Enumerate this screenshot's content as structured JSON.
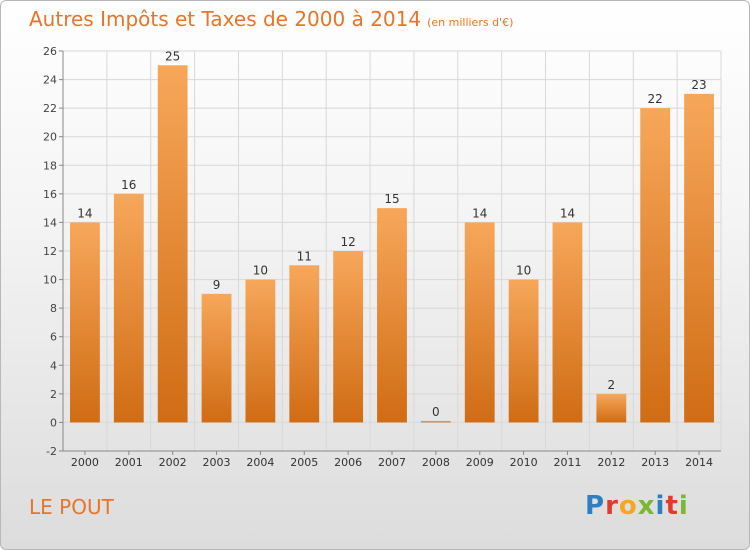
{
  "header": {
    "title": "Autres Impôts et Taxes de 2000 à 2014",
    "unit": "(en milliers d'€)"
  },
  "footer": {
    "commune": "LE POUT",
    "logo_letters": [
      {
        "ch": "P",
        "color": "#2e7fc2"
      },
      {
        "ch": "r",
        "color": "#e5392b"
      },
      {
        "ch": "o",
        "color": "#f5a623"
      },
      {
        "ch": "x",
        "color": "#7cb82f"
      },
      {
        "ch": "i",
        "color": "#2e7fc2"
      },
      {
        "ch": "t",
        "color": "#e5392b"
      },
      {
        "ch": "i",
        "color": "#7cb82f"
      }
    ]
  },
  "chart_data": {
    "type": "bar",
    "categories": [
      "2000",
      "2001",
      "2002",
      "2003",
      "2004",
      "2005",
      "2006",
      "2007",
      "2008",
      "2009",
      "2010",
      "2011",
      "2012",
      "2013",
      "2014"
    ],
    "values": [
      14,
      16,
      25,
      9,
      10,
      11,
      12,
      15,
      0,
      14,
      10,
      14,
      2,
      22,
      23
    ],
    "ylim": [
      -2,
      26
    ],
    "yticks": [
      -2,
      0,
      2,
      4,
      6,
      8,
      10,
      12,
      14,
      16,
      18,
      20,
      22,
      24,
      26
    ],
    "grid": true,
    "bar_color_top": "#f7a75a",
    "bar_color_bottom": "#d06c14",
    "title_color": "#e8742a"
  }
}
